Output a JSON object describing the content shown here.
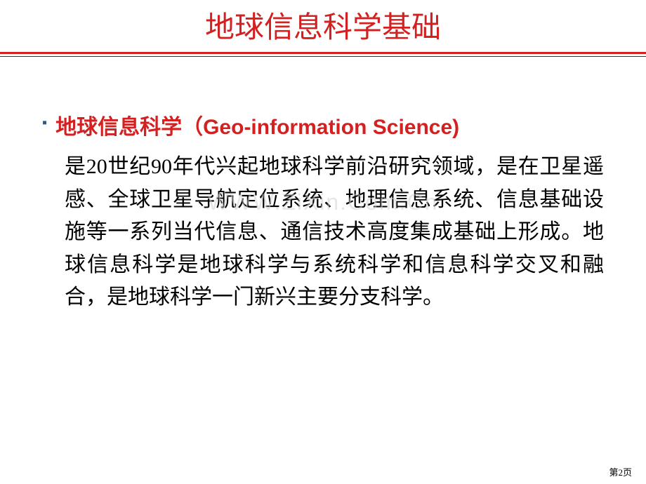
{
  "title": "地球信息科学基础",
  "subtitle": "地球信息科学（Geo-information Science)",
  "body_text": "是20世纪90年代兴起地球科学前沿研究领域，是在卫星遥感、全球卫星导航定位系统、地理信息系统、信息基础设施等一系列当代信息、通信技术高度集成基础上形成。地球信息科学是地球科学与系统科学和信息科学交叉和融合，是地球科学一门新兴主要分支科学。",
  "watermark": "WWW.ZiXin.Com.Cn",
  "page_number": "第2页",
  "colors": {
    "title_color": "#d32020",
    "subtitle_color": "#d32020",
    "body_color": "#000000",
    "bullet_color": "#2a5a8a",
    "red_line": "#d32020",
    "background": "#ffffff"
  }
}
